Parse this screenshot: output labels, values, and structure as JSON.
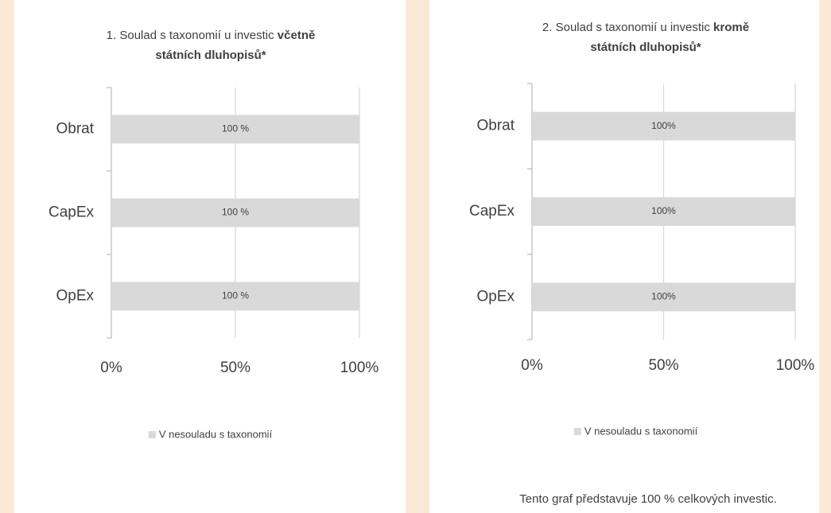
{
  "chart_data": [
    {
      "type": "bar",
      "orientation": "horizontal",
      "title": {
        "text": "1. Soulad s taxonomií u investic",
        "emphasis_line1": "včetně",
        "emphasis_line2": "státních dluhopisů*"
      },
      "categories": [
        "Obrat",
        "CapEx",
        "OpEx"
      ],
      "series": [
        {
          "name": "V nesouladu s taxonomií",
          "color": "#d9d9d9",
          "values": [
            100,
            100,
            100
          ],
          "value_labels": [
            "100 %",
            "100 %",
            "100 %"
          ]
        }
      ],
      "xlim": [
        0,
        100
      ],
      "xticks": [
        {
          "value": 0,
          "label": "0%"
        },
        {
          "value": 50,
          "label": "50%"
        },
        {
          "value": 100,
          "label": "100%"
        }
      ],
      "grid": true,
      "legend": "bottom"
    },
    {
      "type": "bar",
      "orientation": "horizontal",
      "title": {
        "text": "2. Soulad s taxonomií u investic",
        "emphasis_line1": "kromě",
        "emphasis_line2": "státních dluhopisů*"
      },
      "categories": [
        "Obrat",
        "CapEx",
        "OpEx"
      ],
      "series": [
        {
          "name": "V nesouladu s taxonomií",
          "color": "#d9d9d9",
          "values": [
            100,
            100,
            100
          ],
          "value_labels": [
            "100%",
            "100%",
            "100%"
          ]
        }
      ],
      "xlim": [
        0,
        100
      ],
      "xticks": [
        {
          "value": 0,
          "label": "0%"
        },
        {
          "value": 50,
          "label": "50%"
        },
        {
          "value": 100,
          "label": "100%"
        }
      ],
      "grid": true,
      "legend": "bottom",
      "note": "Tento graf představuje 100 % celkových investic."
    }
  ]
}
